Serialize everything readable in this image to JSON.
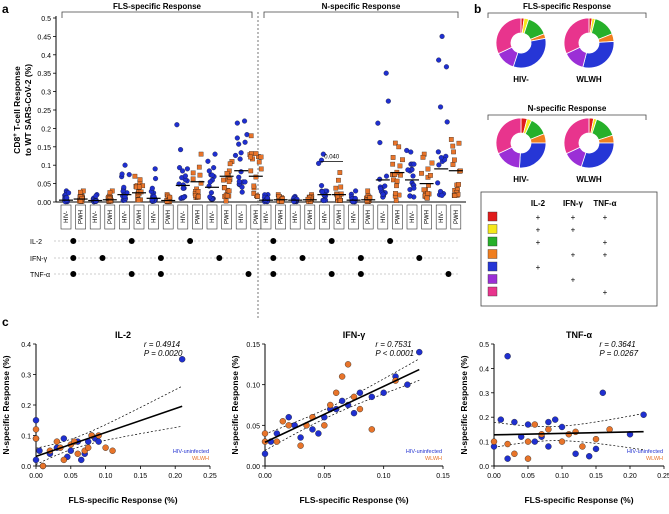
{
  "panels": {
    "a": "a",
    "b": "b",
    "c": "c"
  },
  "panel_a": {
    "groups": [
      "FLS-specific Response",
      "N-specific Response"
    ],
    "ylabel_line1": "CD8",
    "ylabel_sup": "+",
    "ylabel_line1b": " T-cell Response",
    "ylabel_line2": "to WT SARS-CoV-2 (%)",
    "yticks": [
      "0.00",
      "0.05",
      "0.1",
      "0.15",
      "0.2",
      "0.25",
      "0.3",
      "0.35",
      "0.4",
      "0.45",
      "0.5"
    ],
    "ylim": [
      0,
      0.5
    ],
    "pvalue": "0.040",
    "category_labels": [
      "HIV-",
      "PWH",
      "HIV-",
      "PWH",
      "HIV-",
      "PWH",
      "HIV-",
      "PWH",
      "HIV-",
      "PWH",
      "HIV-",
      "PWH",
      "HIV-",
      "PWH",
      "HIV-",
      "PWH",
      "HIV-",
      "PWH",
      "HIV-",
      "PWH",
      "HIV-",
      "PWH",
      "HIV-",
      "PWH",
      "HIV-",
      "PWH",
      "HIV-",
      "PWH"
    ],
    "cytokine_rows": [
      "IL-2",
      "IFN-γ",
      "TNF-α"
    ],
    "colors": {
      "hiv_neg": "#1f2fd0",
      "pwh": "#e8742a"
    }
  },
  "panel_b": {
    "titles": [
      "FLS-specific Response",
      "N-specific Response"
    ],
    "donut_labels": [
      "HIV-",
      "WLWH",
      "HIV-",
      "WLWH"
    ],
    "legend_headers": [
      "IL-2",
      "IFN-γ",
      "TNF-α"
    ],
    "legend_rows": [
      {
        "color": "#e01b1b",
        "marks": [
          "+",
          "+",
          "+"
        ]
      },
      {
        "color": "#f5e71a",
        "marks": [
          "+",
          "+",
          ""
        ]
      },
      {
        "color": "#27b02a",
        "marks": [
          "+",
          "",
          "+"
        ]
      },
      {
        "color": "#f07e1e",
        "marks": [
          "",
          "+",
          "+"
        ]
      },
      {
        "color": "#2636d6",
        "marks": [
          "+",
          "",
          ""
        ]
      },
      {
        "color": "#9b2fd6",
        "marks": [
          "",
          "+",
          ""
        ]
      },
      {
        "color": "#e8348d",
        "marks": [
          "",
          "",
          "+"
        ]
      }
    ],
    "donuts": [
      [
        0.02,
        0.03,
        0.14,
        0.03,
        0.33,
        0.13,
        0.32
      ],
      [
        0.02,
        0.02,
        0.15,
        0.05,
        0.3,
        0.14,
        0.32
      ],
      [
        0.04,
        0.03,
        0.12,
        0.06,
        0.26,
        0.17,
        0.32
      ],
      [
        0.03,
        0.02,
        0.15,
        0.05,
        0.3,
        0.13,
        0.32
      ]
    ]
  },
  "chart_data": [
    {
      "type": "scatter",
      "panel": "a",
      "title": "",
      "ylabel": "CD8+ T-cell Response to WT SARS-CoV-2 (%)",
      "ylim": [
        0,
        0.5
      ],
      "medians": [
        0.005,
        0.008,
        0.004,
        0.006,
        0.02,
        0.025,
        0.01,
        0.004,
        0.045,
        0.055,
        0.04,
        0.07,
        0.085,
        0.07,
        0.005,
        0.006,
        0.005,
        0.006,
        0.02,
        0.02,
        0.005,
        0.006,
        0.06,
        0.08,
        0.06,
        0.05,
        0.09,
        0.085
      ],
      "maxima": [
        0.03,
        0.03,
        0.02,
        0.03,
        0.1,
        0.07,
        0.09,
        0.02,
        0.21,
        0.13,
        0.13,
        0.11,
        0.22,
        0.18,
        0.02,
        0.02,
        0.015,
        0.02,
        0.13,
        0.08,
        0.03,
        0.03,
        0.35,
        0.16,
        0.14,
        0.13,
        0.45,
        0.17
      ]
    },
    {
      "type": "scatter",
      "panel": "c",
      "title": "IL-2",
      "xlabel": "FLS-specific Response (%)",
      "ylabel": "N-specific Response (%)",
      "xlim": [
        0,
        0.25
      ],
      "ylim": [
        0,
        0.4
      ],
      "xticks": [
        "0.00",
        "0.05",
        "0.10",
        "0.15",
        "0.20",
        "0.25"
      ],
      "yticks": [
        "0.0",
        "0.1",
        "0.2",
        "0.3",
        "0.4"
      ],
      "stat_r": "r = 0.4914",
      "stat_p": "P = 0.0020",
      "legend": [
        "HIV-uninfected",
        "WLWH"
      ],
      "series": [
        {
          "name": "HIV-uninfected",
          "color": "#1f2fd0",
          "x": [
            0.0,
            0.0,
            0.005,
            0.02,
            0.04,
            0.045,
            0.05,
            0.06,
            0.065,
            0.07,
            0.075,
            0.08,
            0.085,
            0.09,
            0.21,
            0.01,
            0.03,
            0.0
          ],
          "y": [
            0.15,
            0.02,
            0.05,
            0.04,
            0.09,
            0.03,
            0.05,
            0.08,
            0.02,
            0.04,
            0.08,
            0.1,
            0.09,
            0.08,
            0.35,
            0.0,
            0.06,
            0.09
          ]
        },
        {
          "name": "WLWH",
          "color": "#e8742a",
          "x": [
            0.0,
            0.0,
            0.01,
            0.02,
            0.03,
            0.035,
            0.04,
            0.05,
            0.055,
            0.06,
            0.07,
            0.075,
            0.08,
            0.09,
            0.1,
            0.11
          ],
          "y": [
            0.12,
            0.09,
            0.0,
            0.05,
            0.08,
            0.06,
            0.02,
            0.07,
            0.08,
            0.04,
            0.05,
            0.06,
            0.1,
            0.1,
            0.06,
            0.05
          ]
        }
      ]
    },
    {
      "type": "scatter",
      "panel": "c",
      "title": "IFN-γ",
      "xlabel": "FLS-specific Response (%)",
      "ylabel": "N-specific Response (%)",
      "xlim": [
        0,
        0.15
      ],
      "ylim": [
        0,
        0.15
      ],
      "xticks": [
        "0.00",
        "0.05",
        "0.10",
        "0.15"
      ],
      "yticks": [
        "0.00",
        "0.05",
        "0.10",
        "0.15"
      ],
      "stat_r": "r = 0.7531",
      "stat_p": "P < 0.0001",
      "legend": [
        "HIV-uninfected",
        "WLWH"
      ],
      "series": [
        {
          "name": "HIV-uninfected",
          "color": "#1f2fd0",
          "x": [
            0.0,
            0.005,
            0.01,
            0.02,
            0.025,
            0.03,
            0.04,
            0.05,
            0.055,
            0.06,
            0.065,
            0.07,
            0.08,
            0.09,
            0.1,
            0.11,
            0.12,
            0.13,
            0.075,
            0.045
          ],
          "y": [
            0.015,
            0.03,
            0.04,
            0.06,
            0.05,
            0.035,
            0.045,
            0.06,
            0.07,
            0.07,
            0.08,
            0.075,
            0.09,
            0.085,
            0.09,
            0.11,
            0.1,
            0.14,
            0.065,
            0.04
          ]
        },
        {
          "name": "WLWH",
          "color": "#e8742a",
          "x": [
            0.0,
            0.0,
            0.01,
            0.015,
            0.02,
            0.03,
            0.035,
            0.04,
            0.05,
            0.055,
            0.06,
            0.065,
            0.07,
            0.075,
            0.08,
            0.09,
            0.11
          ],
          "y": [
            0.04,
            0.03,
            0.03,
            0.055,
            0.05,
            0.025,
            0.05,
            0.06,
            0.05,
            0.075,
            0.09,
            0.11,
            0.125,
            0.085,
            0.07,
            0.045,
            0.105
          ]
        }
      ]
    },
    {
      "type": "scatter",
      "panel": "c",
      "title": "TNF-α",
      "xlabel": "FLS-specific Response (%)",
      "ylabel": "N-specific Response (%)",
      "xlim": [
        0,
        0.25
      ],
      "ylim": [
        0,
        0.5
      ],
      "xticks": [
        "0.00",
        "0.05",
        "0.10",
        "0.15",
        "0.20",
        "0.25"
      ],
      "yticks": [
        "0.0",
        "0.1",
        "0.2",
        "0.3",
        "0.4",
        "0.5"
      ],
      "stat_r": "r = 0.3641",
      "stat_p": "P = 0.0267",
      "legend": [
        "HIV-uninfected",
        "WLWH"
      ],
      "series": [
        {
          "name": "HIV-uninfected",
          "color": "#1f2fd0",
          "x": [
            0.0,
            0.01,
            0.02,
            0.03,
            0.04,
            0.05,
            0.06,
            0.07,
            0.08,
            0.09,
            0.1,
            0.12,
            0.14,
            0.16,
            0.2,
            0.22,
            0.02,
            0.08,
            0.15
          ],
          "y": [
            0.08,
            0.19,
            0.45,
            0.18,
            0.12,
            0.17,
            0.1,
            0.12,
            0.18,
            0.19,
            0.16,
            0.05,
            0.04,
            0.3,
            0.13,
            0.21,
            0.03,
            0.08,
            0.07
          ]
        },
        {
          "name": "WLWH",
          "color": "#e8742a",
          "x": [
            0.0,
            0.02,
            0.03,
            0.05,
            0.06,
            0.07,
            0.08,
            0.1,
            0.11,
            0.12,
            0.13,
            0.15,
            0.17,
            0.05
          ],
          "y": [
            0.1,
            0.09,
            0.05,
            0.1,
            0.17,
            0.13,
            0.15,
            0.1,
            0.13,
            0.14,
            0.08,
            0.11,
            0.15,
            0.03
          ]
        }
      ]
    }
  ]
}
